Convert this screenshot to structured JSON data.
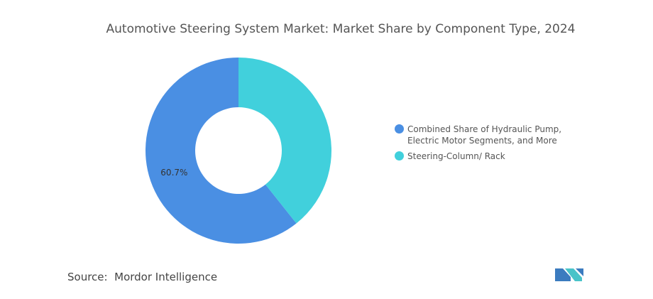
{
  "chart_data": {
    "type": "donut",
    "title": "Automotive Steering System Market: Market Share by Component Type, 2024",
    "categories": [
      "Combined Share of Hydraulic Pump, Electric Motor Segments, and More",
      "Steering-Column/ Rack"
    ],
    "colors": [
      "#4a8fe3",
      "#41d0dc"
    ],
    "values": [
      60.7,
      39.3
    ],
    "value_labels": [
      "60.7%",
      null
    ]
  },
  "footer": {
    "source_label": "Source:",
    "source": "Mordor Intelligence"
  }
}
